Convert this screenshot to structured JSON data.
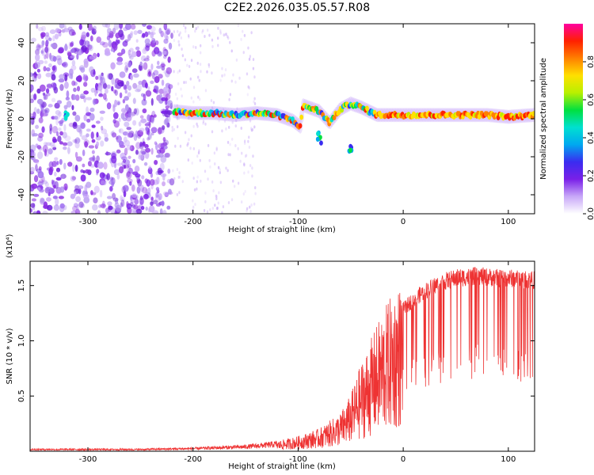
{
  "title": "C2E2.2026.035.05.57.R08",
  "chart_data": [
    {
      "type": "heatmap",
      "xlabel": "Height of straight line (km)",
      "ylabel": "Frequency (Hz)",
      "xlim": [
        -355,
        125
      ],
      "ylim": [
        -50,
        50
      ],
      "x_ticks": [
        -300,
        -200,
        -100,
        0,
        100
      ],
      "y_ticks": [
        -40,
        -20,
        0,
        20,
        40
      ],
      "colorbar": {
        "label": "Normalized spectral amplitude",
        "range": [
          0,
          1
        ],
        "ticks": [
          "0.0",
          "0.2",
          "0.4",
          "0.6",
          "0.8"
        ],
        "colors": [
          "#ffffff",
          "#c8a8f8",
          "#7a20e8",
          "#3a2cf0",
          "#00a8f0",
          "#00e0d0",
          "#00e040",
          "#b8f000",
          "#ffe000",
          "#ff8000",
          "#ff2000",
          "#ff00a0"
        ]
      },
      "noise_region": {
        "x_range": [
          -355,
          -220
        ],
        "y_range": [
          -50,
          50
        ]
      },
      "ridge": [
        {
          "x": -218,
          "y": 4
        },
        {
          "x": -200,
          "y": 3
        },
        {
          "x": -180,
          "y": 3
        },
        {
          "x": -160,
          "y": 2
        },
        {
          "x": -140,
          "y": 3
        },
        {
          "x": -120,
          "y": 2
        },
        {
          "x": -105,
          "y": -1
        },
        {
          "x": -98,
          "y": -4
        },
        {
          "x": -95,
          "y": 7
        },
        {
          "x": -80,
          "y": 4
        },
        {
          "x": -70,
          "y": -2
        },
        {
          "x": -60,
          "y": 5
        },
        {
          "x": -50,
          "y": 8
        },
        {
          "x": -40,
          "y": 6
        },
        {
          "x": -25,
          "y": 2
        },
        {
          "x": 0,
          "y": 2
        },
        {
          "x": 40,
          "y": 2
        },
        {
          "x": 80,
          "y": 2
        },
        {
          "x": 100,
          "y": 1
        },
        {
          "x": 125,
          "y": 2
        }
      ],
      "side_features": [
        {
          "x": -320,
          "y": 3
        },
        {
          "x": -80,
          "y": -10
        },
        {
          "x": -50,
          "y": -15
        }
      ]
    },
    {
      "type": "line",
      "xlabel": "Height of straight line (km)",
      "ylabel": "SNR (10 * v/v)",
      "y_multiplier": "(x10⁴)",
      "xlim": [
        -355,
        125
      ],
      "ylim": [
        0,
        1.72
      ],
      "x_ticks": [
        -300,
        -200,
        -100,
        0,
        100
      ],
      "y_ticks": [
        "0.5",
        "1.0",
        "1.5"
      ],
      "color": "#ee3333",
      "series": [
        {
          "x": [
            -355,
            -300,
            -250,
            -200,
            -150,
            -120,
            -100,
            -80,
            -60,
            -50,
            -40,
            -30,
            -20,
            -10,
            0,
            10,
            20,
            30,
            40,
            50,
            60,
            70,
            80,
            90,
            100,
            110,
            125
          ],
          "y": [
            0.02,
            0.02,
            0.02,
            0.03,
            0.05,
            0.08,
            0.12,
            0.18,
            0.3,
            0.45,
            0.7,
            0.9,
            1.1,
            1.25,
            1.35,
            1.45,
            1.52,
            1.58,
            1.62,
            1.65,
            1.66,
            1.67,
            1.66,
            1.65,
            1.65,
            1.64,
            1.63
          ]
        }
      ]
    }
  ]
}
